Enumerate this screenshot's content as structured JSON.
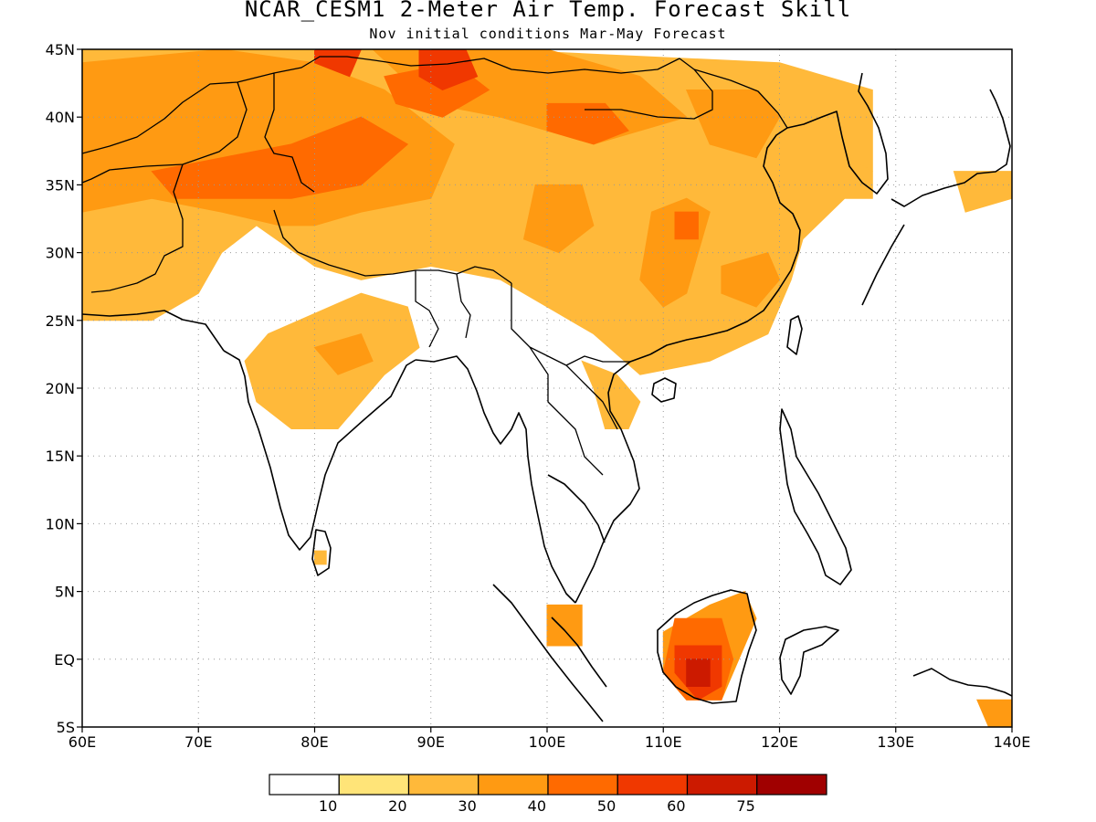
{
  "title": "NCAR_CESM1 2-Meter Air Temp. Forecast Skill",
  "subtitle": "Nov initial conditions  Mar-May Forecast",
  "map": {
    "lon_range": [
      60,
      140
    ],
    "lat_range": [
      -5,
      45
    ],
    "grid": true,
    "lon_ticks": [
      {
        "value": 60,
        "label": "60E"
      },
      {
        "value": 70,
        "label": "70E"
      },
      {
        "value": 80,
        "label": "80E"
      },
      {
        "value": 90,
        "label": "90E"
      },
      {
        "value": 100,
        "label": "100E"
      },
      {
        "value": 110,
        "label": "110E"
      },
      {
        "value": 120,
        "label": "120E"
      },
      {
        "value": 130,
        "label": "130E"
      },
      {
        "value": 140,
        "label": "140E"
      }
    ],
    "lat_ticks": [
      {
        "value": 45,
        "label": "45N"
      },
      {
        "value": 40,
        "label": "40N"
      },
      {
        "value": 35,
        "label": "35N"
      },
      {
        "value": 30,
        "label": "30N"
      },
      {
        "value": 25,
        "label": "25N"
      },
      {
        "value": 20,
        "label": "20N"
      },
      {
        "value": 15,
        "label": "15N"
      },
      {
        "value": 10,
        "label": "10N"
      },
      {
        "value": 5,
        "label": "5N"
      },
      {
        "value": 0,
        "label": "EQ"
      },
      {
        "value": -5,
        "label": "5S"
      }
    ]
  },
  "colorbar": {
    "colors": [
      "#ffffff",
      "#ffe478",
      "#ffb93a",
      "#ff9a12",
      "#ff6a00",
      "#f03800",
      "#cc1a00",
      "#a00000"
    ],
    "labels": [
      "10",
      "20",
      "30",
      "40",
      "50",
      "60",
      "75"
    ]
  },
  "chart_data": {
    "type": "heatmap",
    "variable": "2-Meter Air Temp. Forecast Skill",
    "units": "",
    "skill_levels": [
      0,
      10,
      20,
      30,
      40,
      50,
      60,
      75
    ],
    "regions": [
      {
        "level": 20,
        "points": [
          [
            60,
            45
          ],
          [
            95,
            45
          ],
          [
            120,
            44
          ],
          [
            128,
            42
          ],
          [
            128,
            36
          ],
          [
            122,
            31
          ],
          [
            121,
            28
          ],
          [
            119,
            24
          ],
          [
            114,
            22
          ],
          [
            108,
            21
          ],
          [
            104,
            24
          ],
          [
            100,
            26
          ],
          [
            96,
            28
          ],
          [
            90,
            29
          ],
          [
            84,
            28
          ],
          [
            80,
            29
          ],
          [
            75,
            32
          ],
          [
            72,
            30
          ],
          [
            70,
            27
          ],
          [
            66,
            25
          ],
          [
            60,
            25
          ]
        ]
      },
      {
        "level": 20,
        "points": [
          [
            76,
            24
          ],
          [
            84,
            27
          ],
          [
            88,
            26
          ],
          [
            89,
            23
          ],
          [
            86,
            21
          ],
          [
            82,
            17
          ],
          [
            78,
            17
          ],
          [
            75,
            19
          ],
          [
            74,
            22
          ]
        ]
      },
      {
        "level": 20,
        "points": [
          [
            103,
            22
          ],
          [
            106,
            21
          ],
          [
            108,
            19
          ],
          [
            107,
            17
          ],
          [
            105,
            17
          ],
          [
            104,
            20
          ]
        ]
      },
      {
        "level": 20,
        "points": [
          [
            125,
            34
          ],
          [
            126,
            37
          ],
          [
            128,
            36
          ],
          [
            128,
            34
          ]
        ]
      },
      {
        "level": 20,
        "points": [
          [
            135,
            36
          ],
          [
            140,
            36
          ],
          [
            140,
            34
          ],
          [
            136,
            33
          ]
        ]
      },
      {
        "level": 20,
        "points": [
          [
            80,
            8
          ],
          [
            81,
            8
          ],
          [
            81,
            7
          ],
          [
            80,
            7
          ]
        ]
      },
      {
        "level": 30,
        "points": [
          [
            60,
            44
          ],
          [
            72,
            45
          ],
          [
            80,
            44
          ],
          [
            86,
            42
          ],
          [
            92,
            38
          ],
          [
            90,
            34
          ],
          [
            84,
            33
          ],
          [
            80,
            32
          ],
          [
            77,
            32
          ],
          [
            72,
            33
          ],
          [
            66,
            34
          ],
          [
            60,
            33
          ]
        ]
      },
      {
        "level": 30,
        "points": [
          [
            85,
            45
          ],
          [
            100,
            45
          ],
          [
            108,
            43
          ],
          [
            112,
            40
          ],
          [
            104,
            38
          ],
          [
            96,
            40
          ],
          [
            90,
            41
          ]
        ]
      },
      {
        "level": 30,
        "points": [
          [
            112,
            42
          ],
          [
            118,
            42
          ],
          [
            120,
            40
          ],
          [
            118,
            37
          ],
          [
            114,
            38
          ]
        ]
      },
      {
        "level": 30,
        "points": [
          [
            109,
            33
          ],
          [
            112,
            34
          ],
          [
            114,
            33
          ],
          [
            113,
            30
          ],
          [
            112,
            27
          ],
          [
            110,
            26
          ],
          [
            108,
            28
          ]
        ]
      },
      {
        "level": 30,
        "points": [
          [
            99,
            35
          ],
          [
            103,
            35
          ],
          [
            104,
            32
          ],
          [
            101,
            30
          ],
          [
            98,
            31
          ]
        ]
      },
      {
        "level": 30,
        "points": [
          [
            115,
            29
          ],
          [
            119,
            30
          ],
          [
            120,
            28
          ],
          [
            118,
            26
          ],
          [
            115,
            27
          ]
        ]
      },
      {
        "level": 30,
        "points": [
          [
            80,
            23
          ],
          [
            84,
            24
          ],
          [
            85,
            22
          ],
          [
            82,
            21
          ]
        ]
      },
      {
        "level": 30,
        "points": [
          [
            100,
            4
          ],
          [
            103,
            4
          ],
          [
            103,
            1
          ],
          [
            100,
            1
          ]
        ]
      },
      {
        "level": 30,
        "points": [
          [
            110,
            2
          ],
          [
            114,
            4
          ],
          [
            117,
            5
          ],
          [
            118,
            3
          ],
          [
            116,
            -1
          ],
          [
            115,
            -3
          ],
          [
            112,
            -3
          ],
          [
            110,
            -1
          ]
        ]
      },
      {
        "level": 30,
        "points": [
          [
            137,
            -3
          ],
          [
            140,
            -3
          ],
          [
            140,
            -5
          ],
          [
            138,
            -5
          ]
        ]
      },
      {
        "level": 40,
        "points": [
          [
            66,
            36
          ],
          [
            72,
            37
          ],
          [
            78,
            38
          ],
          [
            84,
            40
          ],
          [
            88,
            38
          ],
          [
            84,
            35
          ],
          [
            78,
            34
          ],
          [
            72,
            34
          ],
          [
            68,
            34
          ]
        ]
      },
      {
        "level": 40,
        "points": [
          [
            86,
            43
          ],
          [
            92,
            44
          ],
          [
            95,
            42
          ],
          [
            91,
            40
          ],
          [
            87,
            41
          ]
        ]
      },
      {
        "level": 40,
        "points": [
          [
            100,
            41
          ],
          [
            105,
            41
          ],
          [
            107,
            39
          ],
          [
            104,
            38
          ],
          [
            100,
            39
          ]
        ]
      },
      {
        "level": 40,
        "points": [
          [
            111,
            33
          ],
          [
            113,
            33
          ],
          [
            113,
            31
          ],
          [
            111,
            31
          ]
        ]
      },
      {
        "level": 40,
        "points": [
          [
            111,
            3
          ],
          [
            115,
            3
          ],
          [
            116,
            0
          ],
          [
            115,
            -3
          ],
          [
            112,
            -3
          ],
          [
            110,
            -1
          ]
        ]
      },
      {
        "level": 50,
        "points": [
          [
            89,
            45
          ],
          [
            93,
            45
          ],
          [
            94,
            43
          ],
          [
            91,
            42
          ],
          [
            89,
            43
          ]
        ]
      },
      {
        "level": 50,
        "points": [
          [
            80,
            45
          ],
          [
            84,
            45
          ],
          [
            83,
            43
          ],
          [
            80,
            44
          ]
        ]
      },
      {
        "level": 50,
        "points": [
          [
            111,
            1
          ],
          [
            115,
            1
          ],
          [
            115,
            -2
          ],
          [
            113,
            -3
          ],
          [
            111,
            -1
          ]
        ]
      },
      {
        "level": 60,
        "points": [
          [
            112,
            0
          ],
          [
            114,
            0
          ],
          [
            114,
            -2
          ],
          [
            112,
            -2
          ]
        ]
      }
    ]
  }
}
